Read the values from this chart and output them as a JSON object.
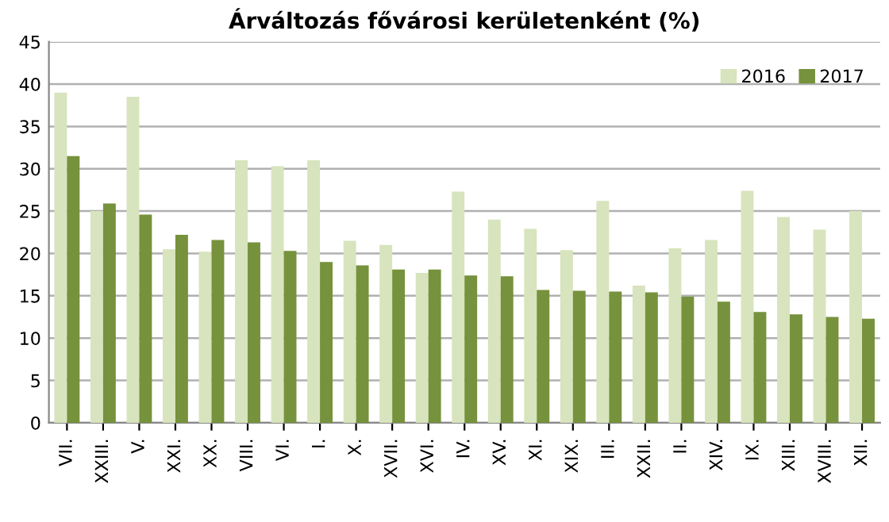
{
  "chart_data": {
    "type": "bar",
    "title": "Árváltozás fővárosi kerületenként (%)",
    "categories": [
      "VII.",
      "XXIII.",
      "V.",
      "XXI.",
      "XX.",
      "VIII.",
      "VI.",
      "I.",
      "X.",
      "XVII.",
      "XVI.",
      "IV.",
      "XV.",
      "XI.",
      "XIX.",
      "III.",
      "XXII.",
      "II.",
      "XIV.",
      "IX.",
      "XIII.",
      "XVIII.",
      "XII."
    ],
    "series": [
      {
        "name": "2016",
        "color": "#d7e4bd",
        "values": [
          39,
          25,
          38.5,
          20.5,
          20.2,
          31,
          30.3,
          31,
          21.5,
          21,
          17.7,
          27.3,
          24,
          22.9,
          20.4,
          26.2,
          16.2,
          20.6,
          21.6,
          27.4,
          24.3,
          22.8,
          25.0
        ]
      },
      {
        "name": "2017",
        "color": "#76923c",
        "values": [
          31.5,
          25.9,
          24.6,
          22.2,
          21.6,
          21.3,
          20.3,
          19,
          18.6,
          18.1,
          18.1,
          17.4,
          17.3,
          15.7,
          15.6,
          15.5,
          15.4,
          14.9,
          14.3,
          13.1,
          12.8,
          12.5,
          12.3
        ]
      }
    ],
    "ylim": [
      0,
      45
    ],
    "yticks": [
      0,
      5,
      10,
      15,
      20,
      25,
      30,
      35,
      40,
      45
    ],
    "grid": "y",
    "legend": "top right"
  }
}
